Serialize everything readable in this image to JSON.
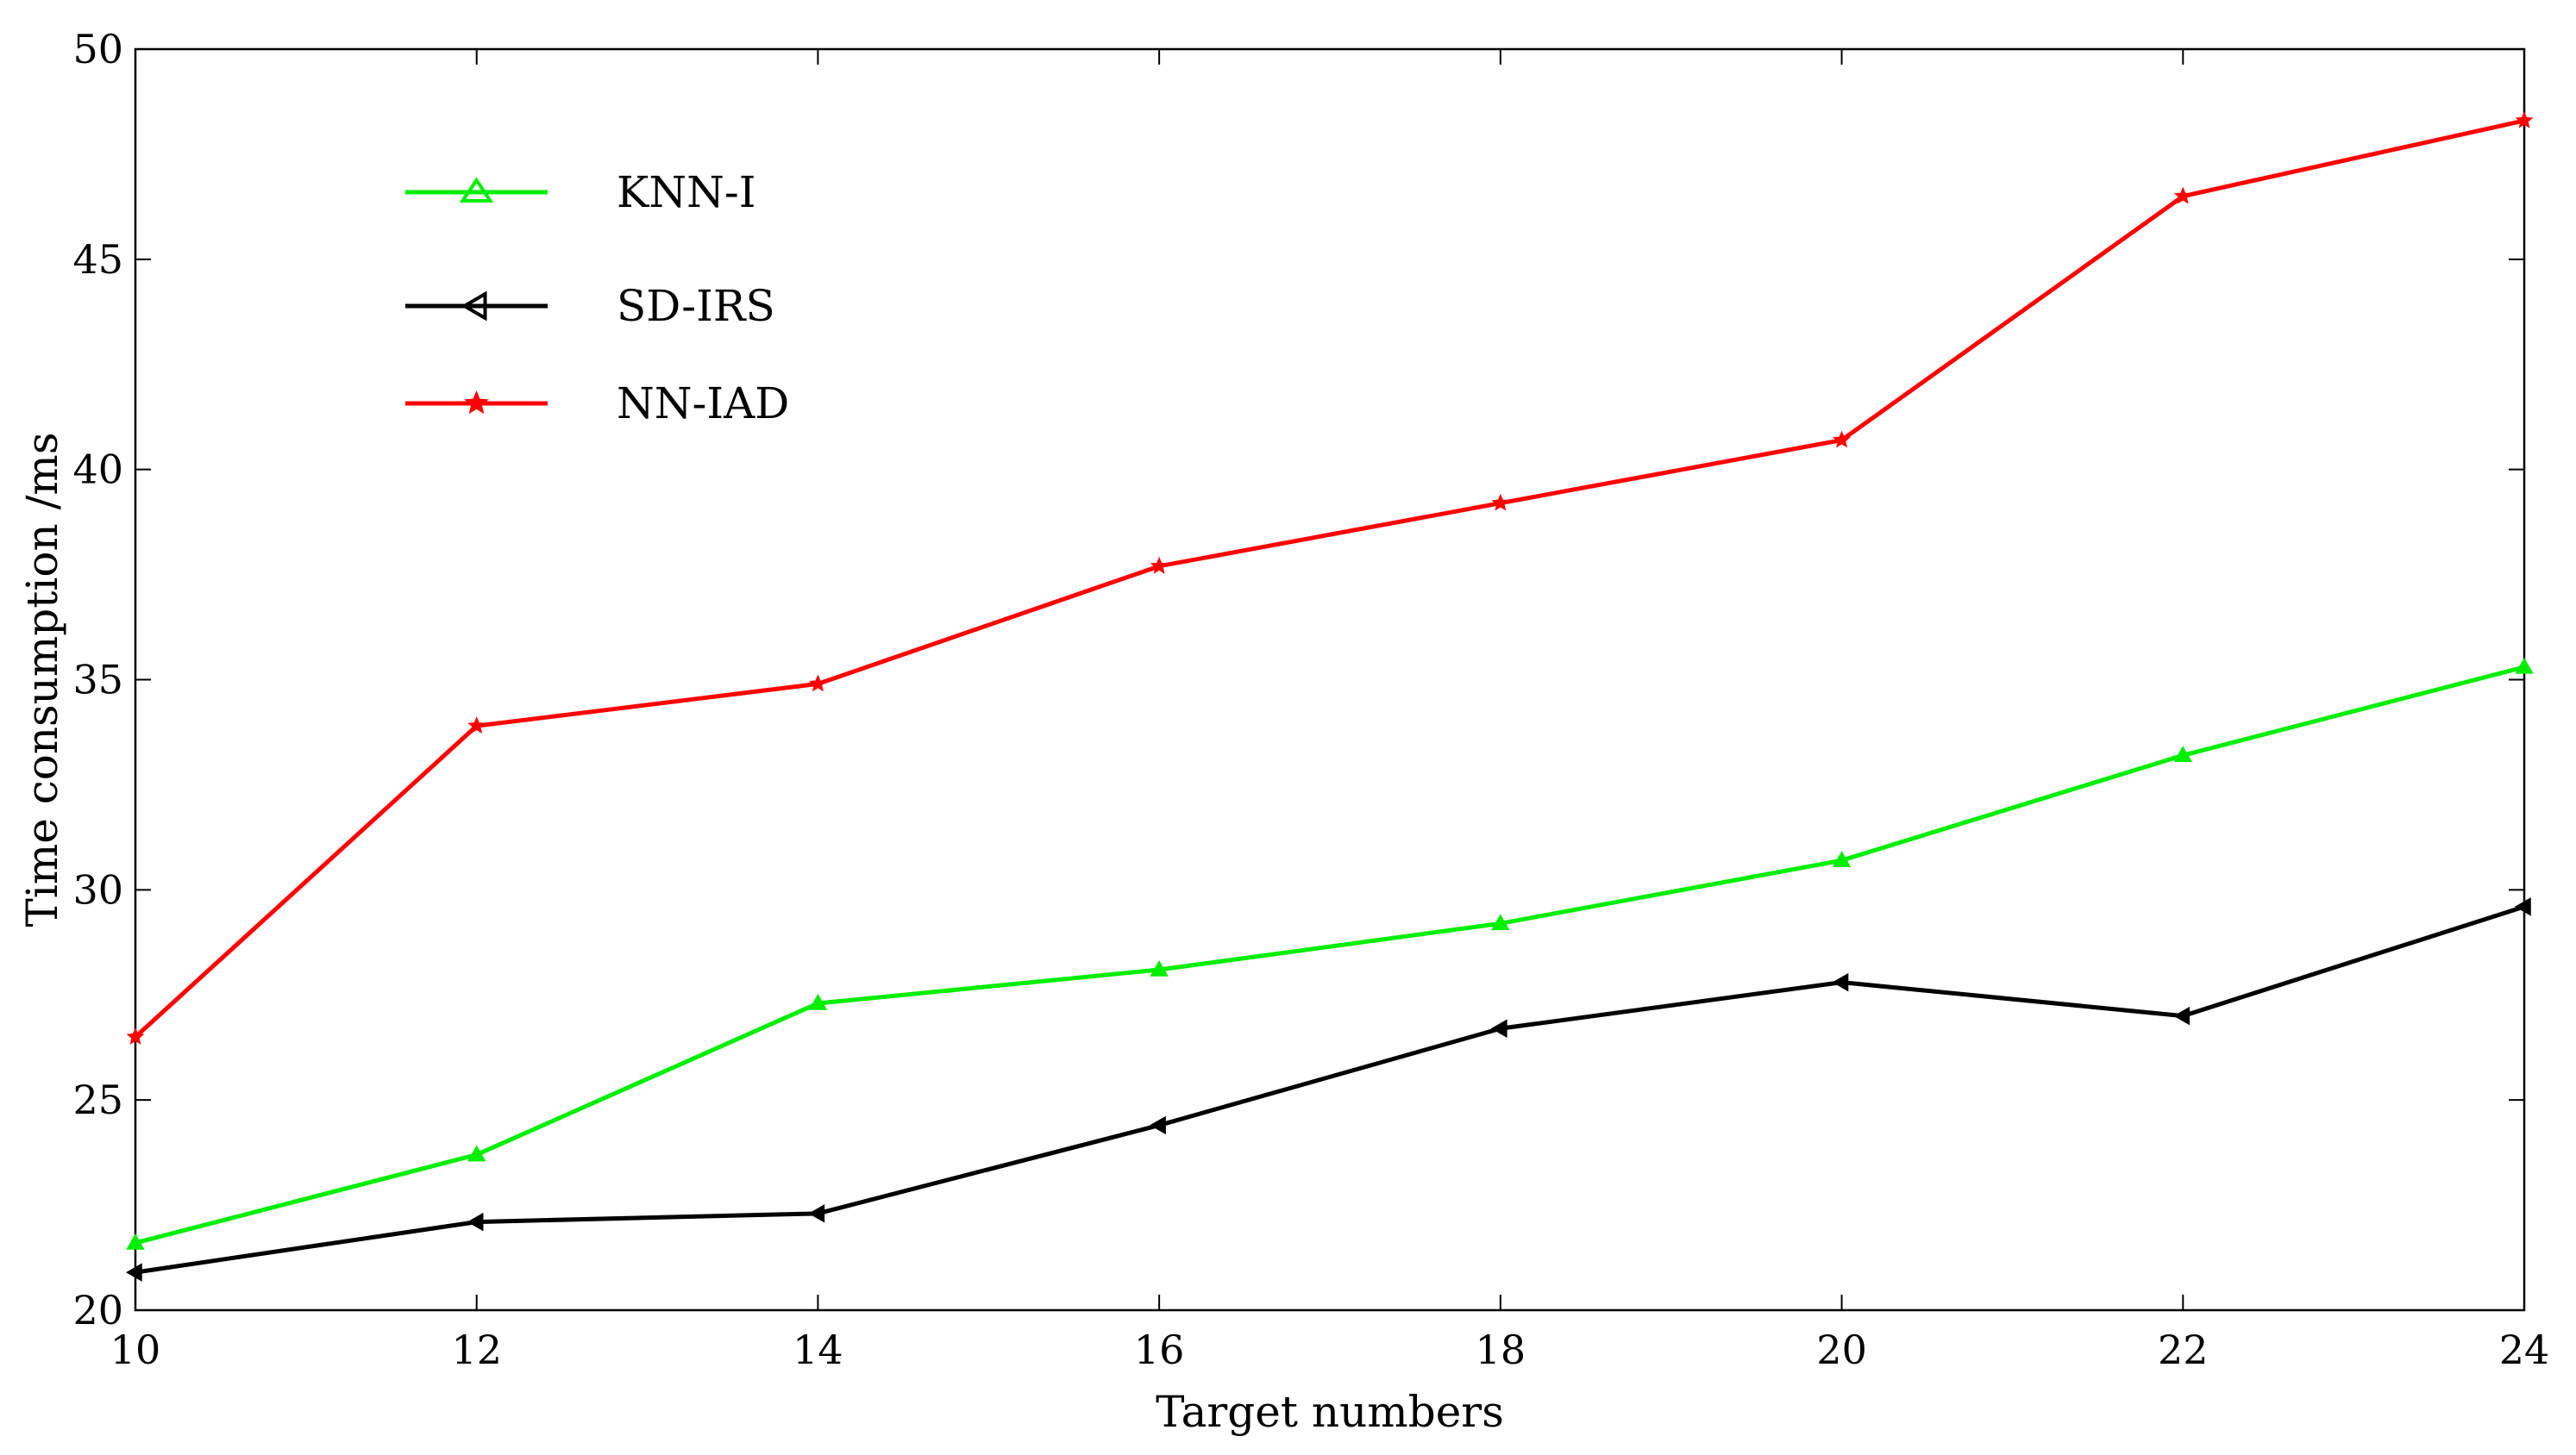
{
  "chart_data": {
    "type": "line",
    "title": "",
    "xlabel": "Target numbers",
    "ylabel": "Time consumption /ms",
    "xlim": [
      10,
      24
    ],
    "ylim": [
      20,
      50
    ],
    "x": [
      10,
      12,
      14,
      16,
      18,
      20,
      22,
      24
    ],
    "x_ticks": [
      "10",
      "12",
      "14",
      "16",
      "18",
      "20",
      "22",
      "24"
    ],
    "y_ticks": [
      "20",
      "25",
      "30",
      "35",
      "40",
      "45",
      "50"
    ],
    "grid": false,
    "legend_position": "top-left",
    "series": [
      {
        "name": "KNN-I",
        "color": "#00ee00",
        "marker": "triangle-up",
        "values": [
          21.6,
          23.7,
          27.3,
          28.1,
          29.2,
          30.7,
          33.2,
          35.3
        ]
      },
      {
        "name": "SD-IRS",
        "color": "#000000",
        "marker": "triangle-left",
        "values": [
          20.9,
          22.1,
          22.3,
          24.4,
          26.7,
          27.8,
          27.0,
          29.6
        ]
      },
      {
        "name": "NN-IAD",
        "color": "#ff0000",
        "marker": "star",
        "values": [
          26.5,
          33.9,
          34.9,
          37.7,
          39.2,
          40.7,
          46.5,
          48.3
        ]
      }
    ]
  }
}
